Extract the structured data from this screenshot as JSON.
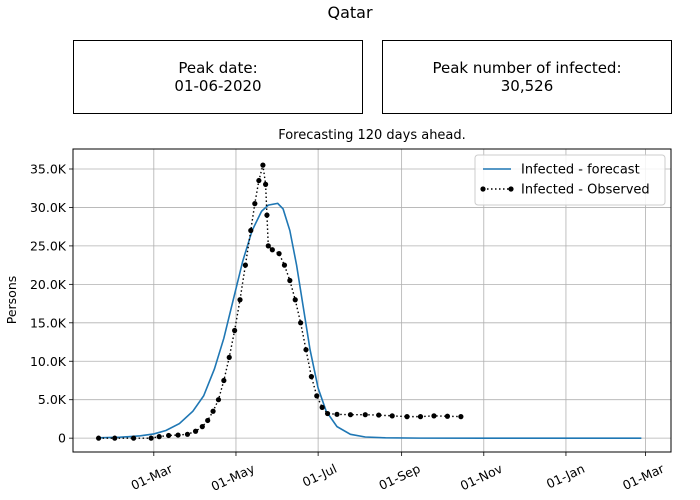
{
  "page": {
    "title": "Qatar",
    "peak_date_label": "Peak date:",
    "peak_date_value": "01-06-2020",
    "peak_infected_label": "Peak number of infected:",
    "peak_infected_value": "30,526"
  },
  "chart_data": {
    "type": "line",
    "title": "Forecasting 120 days ahead.",
    "xlabel": "",
    "ylabel": "Persons",
    "x_axis": "date",
    "xlim": [
      "2020-01-01",
      "2021-03-20"
    ],
    "ylim": [
      -1800,
      37600
    ],
    "x_ticks": [
      {
        "date": "2020-03-01",
        "label": "01-Mar"
      },
      {
        "date": "2020-05-01",
        "label": "01-May"
      },
      {
        "date": "2020-07-01",
        "label": "01-Jul"
      },
      {
        "date": "2020-09-01",
        "label": "01-Sep"
      },
      {
        "date": "2020-11-01",
        "label": "01-Nov"
      },
      {
        "date": "2021-01-01",
        "label": "01-Jan"
      },
      {
        "date": "2021-03-01",
        "label": "01-Mar"
      }
    ],
    "y_ticks": [
      {
        "value": 0,
        "label": "0"
      },
      {
        "value": 5000,
        "label": "5.0K"
      },
      {
        "value": 10000,
        "label": "10.0K"
      },
      {
        "value": 15000,
        "label": "15.0K"
      },
      {
        "value": 20000,
        "label": "20.0K"
      },
      {
        "value": 25000,
        "label": "25.0K"
      },
      {
        "value": 30000,
        "label": "30.0K"
      },
      {
        "value": 35000,
        "label": "35.0K"
      }
    ],
    "grid": true,
    "legend_position": "top-right",
    "series": [
      {
        "name": "Infected - forecast",
        "style": "line",
        "color": "#1f77b4",
        "points": [
          [
            "2020-01-20",
            40
          ],
          [
            "2020-02-05",
            120
          ],
          [
            "2020-02-20",
            300
          ],
          [
            "2020-03-01",
            550
          ],
          [
            "2020-03-10",
            1000
          ],
          [
            "2020-03-20",
            1900
          ],
          [
            "2020-03-30",
            3500
          ],
          [
            "2020-04-07",
            5500
          ],
          [
            "2020-04-15",
            9000
          ],
          [
            "2020-04-22",
            13000
          ],
          [
            "2020-04-29",
            18000
          ],
          [
            "2020-05-06",
            23000
          ],
          [
            "2020-05-13",
            27000
          ],
          [
            "2020-05-20",
            29500
          ],
          [
            "2020-05-25",
            30300
          ],
          [
            "2020-06-01",
            30526
          ],
          [
            "2020-06-05",
            29800
          ],
          [
            "2020-06-10",
            27000
          ],
          [
            "2020-06-15",
            22500
          ],
          [
            "2020-06-20",
            17000
          ],
          [
            "2020-06-25",
            11500
          ],
          [
            "2020-07-01",
            6500
          ],
          [
            "2020-07-07",
            3500
          ],
          [
            "2020-07-15",
            1500
          ],
          [
            "2020-07-25",
            500
          ],
          [
            "2020-08-05",
            150
          ],
          [
            "2020-08-20",
            40
          ],
          [
            "2020-09-15",
            5
          ],
          [
            "2020-11-01",
            0
          ],
          [
            "2021-01-01",
            0
          ],
          [
            "2021-02-26",
            0
          ]
        ]
      },
      {
        "name": "Infected - Observed",
        "style": "dotted-markers",
        "color": "#000000",
        "points": [
          [
            "2020-01-20",
            0
          ],
          [
            "2020-02-01",
            0
          ],
          [
            "2020-02-15",
            0
          ],
          [
            "2020-02-28",
            0
          ],
          [
            "2020-03-05",
            200
          ],
          [
            "2020-03-12",
            350
          ],
          [
            "2020-03-19",
            400
          ],
          [
            "2020-03-26",
            500
          ],
          [
            "2020-04-01",
            900
          ],
          [
            "2020-04-06",
            1500
          ],
          [
            "2020-04-10",
            2300
          ],
          [
            "2020-04-14",
            3500
          ],
          [
            "2020-04-18",
            5000
          ],
          [
            "2020-04-22",
            7500
          ],
          [
            "2020-04-26",
            10500
          ],
          [
            "2020-04-30",
            14000
          ],
          [
            "2020-05-04",
            18000
          ],
          [
            "2020-05-08",
            22500
          ],
          [
            "2020-05-12",
            27000
          ],
          [
            "2020-05-15",
            30500
          ],
          [
            "2020-05-18",
            33500
          ],
          [
            "2020-05-21",
            35500
          ],
          [
            "2020-05-23",
            33000
          ],
          [
            "2020-05-24",
            29000
          ],
          [
            "2020-05-25",
            25000
          ],
          [
            "2020-05-28",
            24500
          ],
          [
            "2020-06-02",
            24000
          ],
          [
            "2020-06-06",
            22500
          ],
          [
            "2020-06-10",
            20500
          ],
          [
            "2020-06-14",
            18000
          ],
          [
            "2020-06-18",
            15000
          ],
          [
            "2020-06-22",
            11500
          ],
          [
            "2020-06-26",
            8000
          ],
          [
            "2020-06-30",
            5500
          ],
          [
            "2020-07-04",
            4000
          ],
          [
            "2020-07-08",
            3200
          ],
          [
            "2020-07-15",
            3100
          ],
          [
            "2020-07-25",
            3050
          ],
          [
            "2020-08-05",
            3050
          ],
          [
            "2020-08-15",
            3000
          ],
          [
            "2020-08-25",
            2900
          ],
          [
            "2020-09-05",
            2800
          ],
          [
            "2020-09-15",
            2800
          ],
          [
            "2020-09-25",
            2900
          ],
          [
            "2020-10-05",
            2850
          ],
          [
            "2020-10-15",
            2800
          ]
        ]
      }
    ]
  }
}
